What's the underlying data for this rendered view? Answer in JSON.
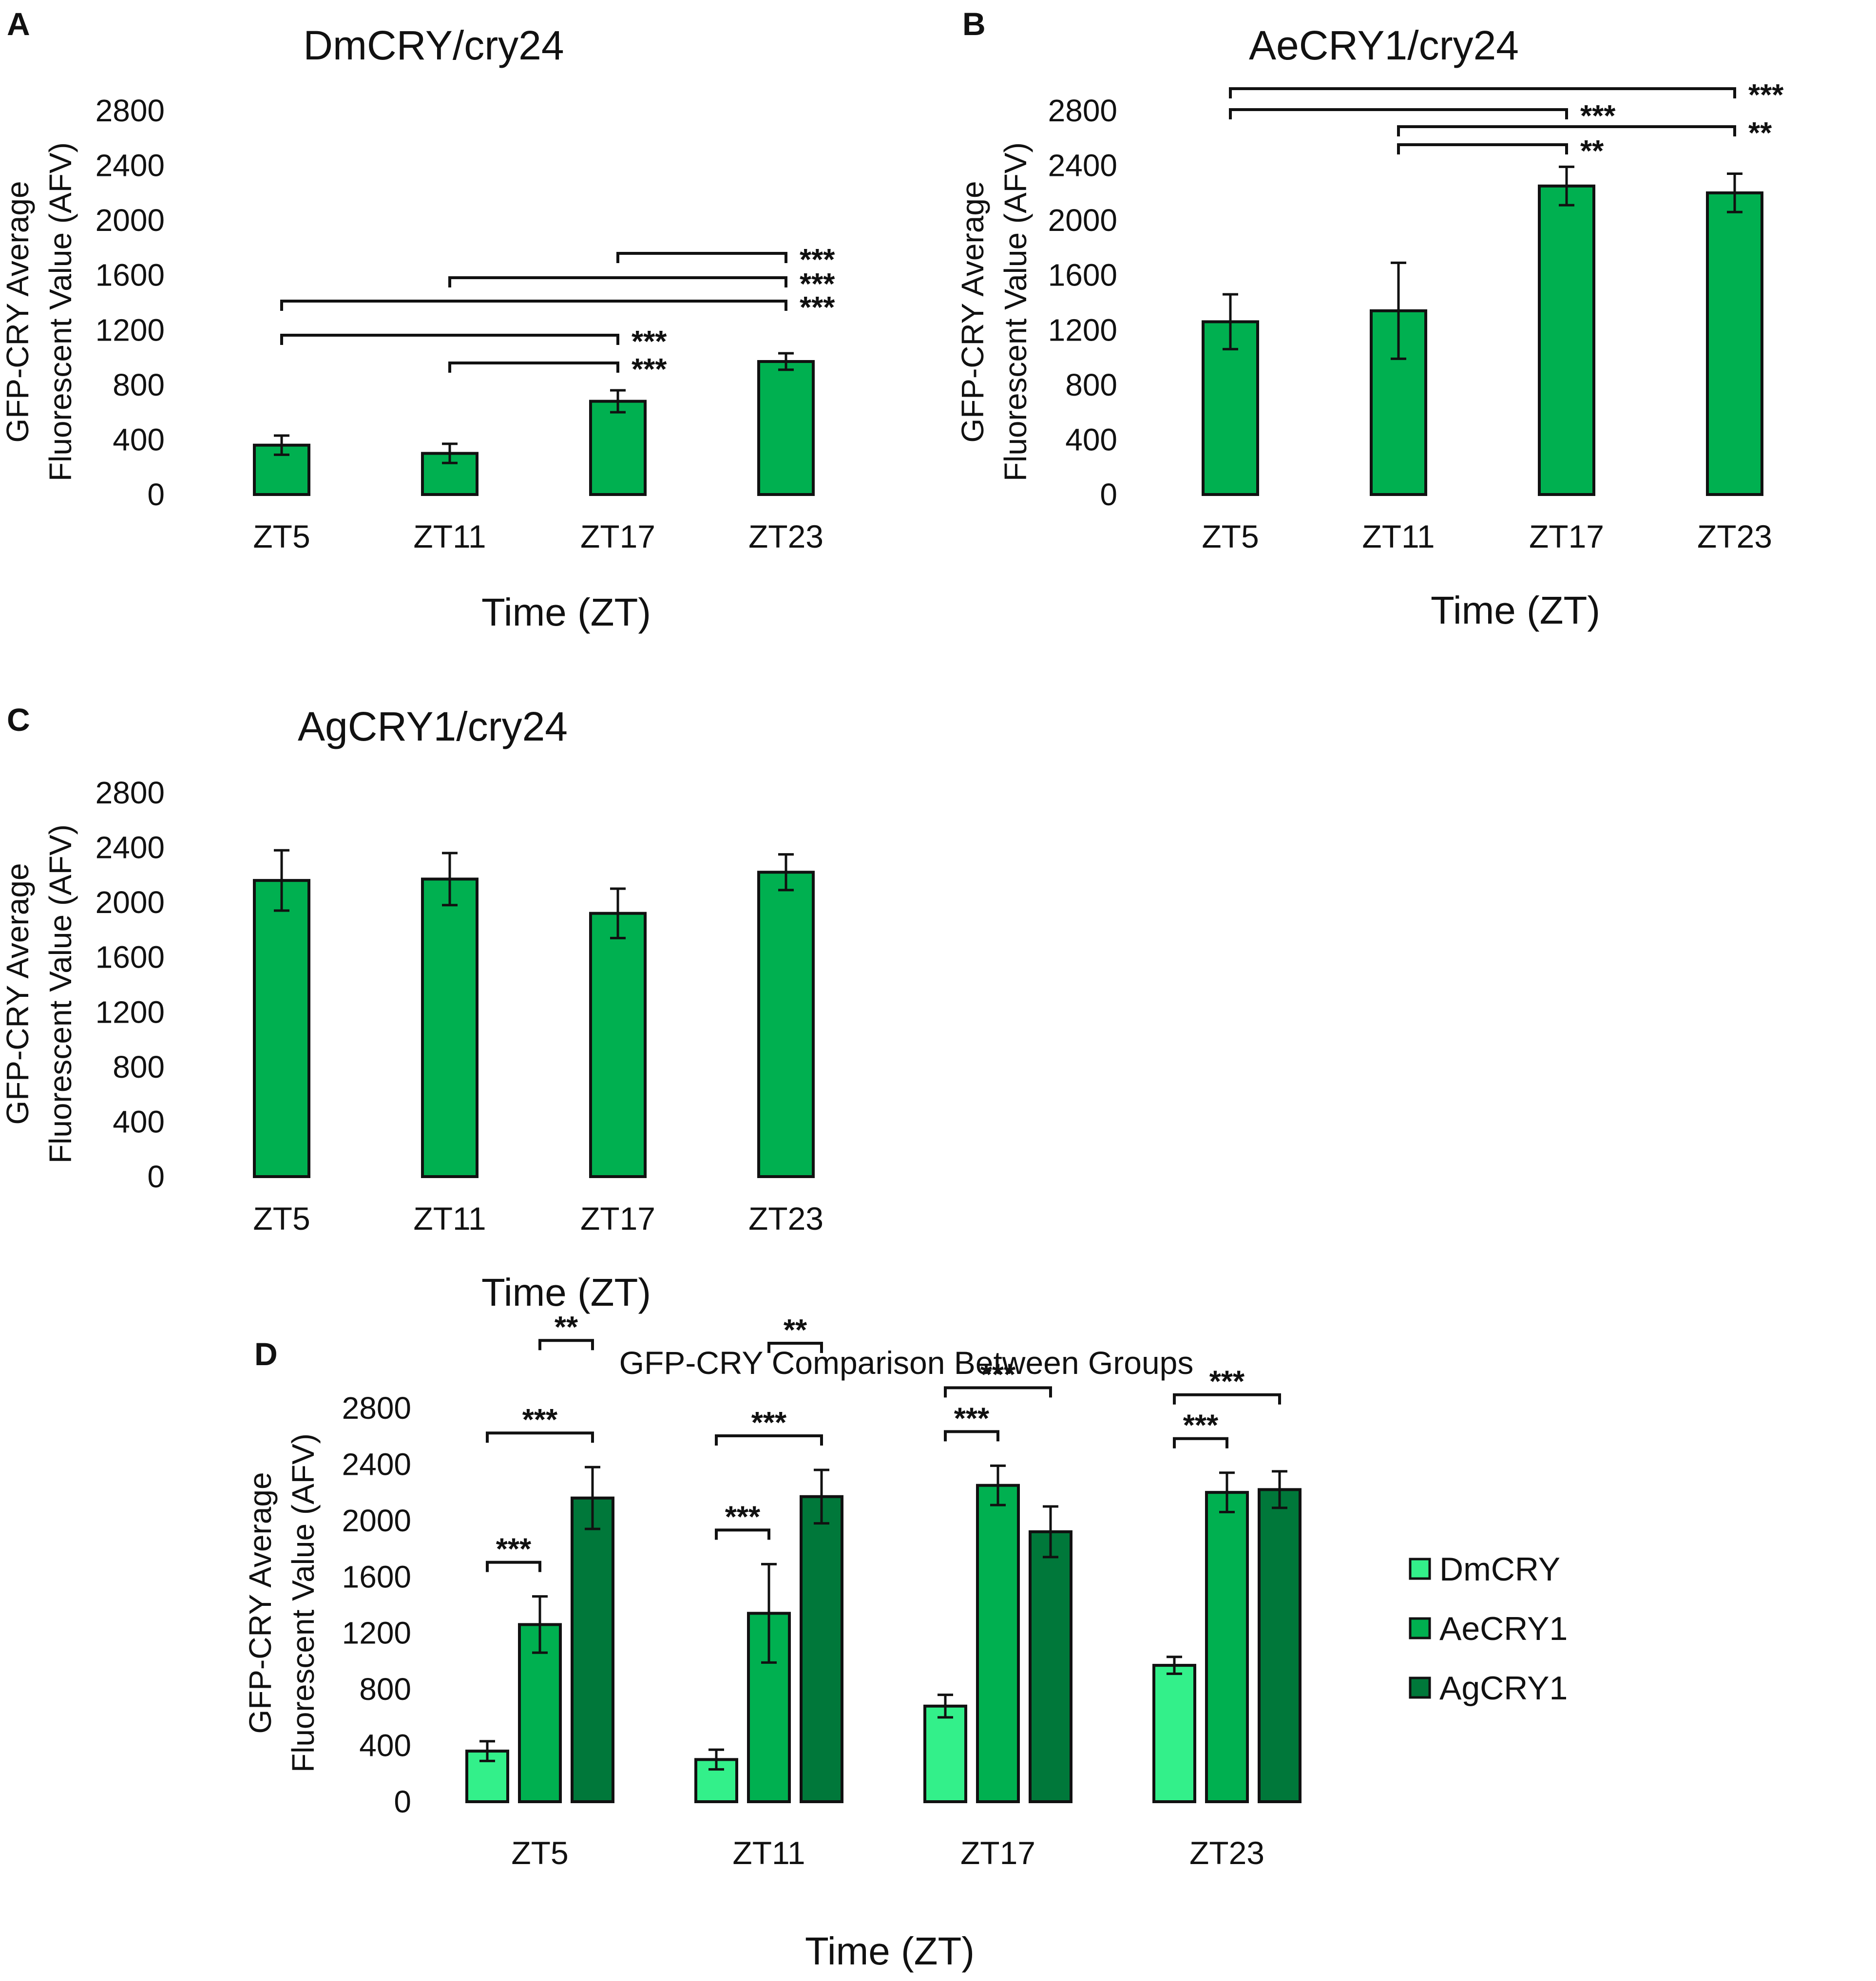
{
  "figure": {
    "panels": {
      "A": {
        "letter": "A",
        "title": "DmCRY/cry24"
      },
      "B": {
        "letter": "B",
        "title": "AeCRY1/cry24"
      },
      "C": {
        "letter": "C",
        "title": "AgCRY1/cry24"
      },
      "D": {
        "letter": "D",
        "title": "GFP-CRY Comparison Between Groups"
      }
    },
    "y_axis_label_line1": "GFP-CRY Average",
    "y_axis_label_line2": "Fluorescent Value (AFV)",
    "x_axis_label": "Time (ZT)"
  },
  "chart_data": [
    {
      "panel": "A",
      "type": "bar",
      "title": "DmCRY/cry24",
      "xlabel": "Time (ZT)",
      "ylabel": "GFP-CRY Average Fluorescent Value (AFV)",
      "categories": [
        "ZT5",
        "ZT11",
        "ZT17",
        "ZT23"
      ],
      "values": [
        360,
        300,
        680,
        970
      ],
      "errors": [
        70,
        70,
        80,
        60
      ],
      "ylim": [
        0,
        2800
      ],
      "yticks": [
        0,
        400,
        800,
        1200,
        1600,
        2000,
        2400,
        2800
      ],
      "color": "#00b050",
      "significance": [
        {
          "from": 2,
          "to": 3,
          "label": "***"
        },
        {
          "from": 1,
          "to": 3,
          "label": "***"
        },
        {
          "from": 0,
          "to": 3,
          "label": "***"
        },
        {
          "from": 0,
          "to": 2,
          "label": "***"
        },
        {
          "from": 1,
          "to": 2,
          "label": "***"
        }
      ]
    },
    {
      "panel": "B",
      "type": "bar",
      "title": "AeCRY1/cry24",
      "xlabel": "Time (ZT)",
      "ylabel": "GFP-CRY Average Fluorescent Value (AFV)",
      "categories": [
        "ZT5",
        "ZT11",
        "ZT17",
        "ZT23"
      ],
      "values": [
        1260,
        1340,
        2250,
        2200
      ],
      "errors": [
        200,
        350,
        140,
        140
      ],
      "ylim": [
        0,
        2800
      ],
      "yticks": [
        0,
        400,
        800,
        1200,
        1600,
        2000,
        2400,
        2800
      ],
      "color": "#00b050",
      "significance": [
        {
          "from": 0,
          "to": 3,
          "label": "***"
        },
        {
          "from": 0,
          "to": 2,
          "label": "***"
        },
        {
          "from": 1,
          "to": 3,
          "label": "**"
        },
        {
          "from": 1,
          "to": 2,
          "label": "**"
        }
      ]
    },
    {
      "panel": "C",
      "type": "bar",
      "title": "AgCRY1/cry24",
      "xlabel": "Time (ZT)",
      "ylabel": "GFP-CRY Average Fluorescent Value (AFV)",
      "categories": [
        "ZT5",
        "ZT11",
        "ZT17",
        "ZT23"
      ],
      "values": [
        2160,
        2170,
        1920,
        2220
      ],
      "errors": [
        220,
        190,
        180,
        130
      ],
      "ylim": [
        0,
        2800
      ],
      "yticks": [
        0,
        400,
        800,
        1200,
        1600,
        2000,
        2400,
        2800
      ],
      "color": "#00b050",
      "significance": []
    },
    {
      "panel": "D",
      "type": "bar",
      "title": "GFP-CRY Comparison Between Groups",
      "xlabel": "Time (ZT)",
      "ylabel": "GFP-CRY Average Fluorescent Value (AFV)",
      "categories": [
        "ZT5",
        "ZT11",
        "ZT17",
        "ZT23"
      ],
      "ylim": [
        0,
        2800
      ],
      "yticks": [
        0,
        400,
        800,
        1200,
        1600,
        2000,
        2400,
        2800
      ],
      "series": [
        {
          "name": "DmCRY",
          "color": "#33f08a",
          "values": [
            360,
            300,
            680,
            970
          ],
          "errors": [
            70,
            70,
            80,
            60
          ]
        },
        {
          "name": "AeCRY1",
          "color": "#00b050",
          "values": [
            1260,
            1340,
            2250,
            2200
          ],
          "errors": [
            200,
            350,
            140,
            140
          ]
        },
        {
          "name": "AgCRY1",
          "color": "#00783a",
          "values": [
            2160,
            2170,
            1920,
            2220
          ],
          "errors": [
            220,
            190,
            180,
            130
          ]
        }
      ],
      "significance": [
        {
          "category": 0,
          "from": 0,
          "to": 1,
          "label": "***"
        },
        {
          "category": 0,
          "from": 0,
          "to": 2,
          "label": "***"
        },
        {
          "category": 0,
          "from": 1,
          "to": 2,
          "label": "**"
        },
        {
          "category": 1,
          "from": 0,
          "to": 1,
          "label": "***"
        },
        {
          "category": 1,
          "from": 0,
          "to": 2,
          "label": "***"
        },
        {
          "category": 1,
          "from": 1,
          "to": 2,
          "label": "**"
        },
        {
          "category": 2,
          "from": 0,
          "to": 1,
          "label": "***"
        },
        {
          "category": 2,
          "from": 0,
          "to": 2,
          "label": "***"
        },
        {
          "category": 3,
          "from": 0,
          "to": 1,
          "label": "***"
        },
        {
          "category": 3,
          "from": 0,
          "to": 2,
          "label": "***"
        }
      ],
      "legend": [
        "DmCRY",
        "AeCRY1",
        "AgCRY1"
      ]
    }
  ]
}
